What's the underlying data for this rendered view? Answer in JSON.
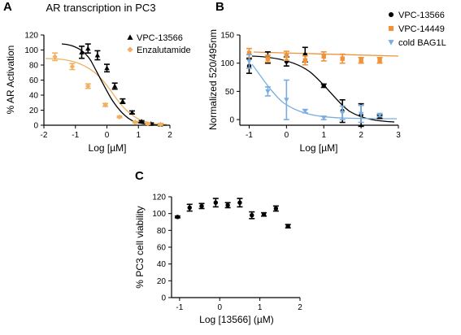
{
  "figure": {
    "panel_labels": [
      "A",
      "B",
      "C"
    ]
  },
  "chart_data": [
    {
      "panel": "A",
      "type": "scatter",
      "title": "AR transcription in PC3",
      "xlabel": "Log [µM]",
      "ylabel": "% AR Activation",
      "xlim": [
        -2,
        2
      ],
      "ylim": [
        0,
        120
      ],
      "x_ticks": [
        "-2",
        "-1",
        "0",
        "1",
        "2"
      ],
      "y_ticks": [
        "0",
        "20",
        "40",
        "60",
        "80",
        "100",
        "120"
      ],
      "legend": "top-right",
      "series": [
        {
          "name": "VPC-13566",
          "color": "#000000",
          "marker": "triangle",
          "x": [
            -0.8,
            -0.6,
            -0.3,
            0.0,
            0.25,
            0.5,
            0.8,
            1.1,
            1.4,
            1.7
          ],
          "y": [
            97,
            102,
            93,
            76,
            52,
            32,
            17,
            5,
            2,
            1
          ],
          "err": [
            8,
            6,
            6,
            5,
            4,
            3,
            2,
            1,
            1,
            1
          ]
        },
        {
          "name": "Enzalutamide",
          "color": "#f0b060",
          "marker": "diamond",
          "x": [
            -1.65,
            -1.1,
            -0.6,
            -0.05,
            0.4,
            0.9,
            1.3,
            1.7
          ],
          "y": [
            91,
            78,
            52,
            27,
            11,
            4,
            2,
            1
          ],
          "err": [
            5,
            4,
            3,
            2,
            1,
            1,
            1,
            1
          ]
        }
      ]
    },
    {
      "panel": "B",
      "type": "scatter",
      "title": "",
      "xlabel": "Log [µM]",
      "ylabel": "Normalized 520/495nm",
      "xlim": [
        -1.25,
        3
      ],
      "ylim": [
        -10,
        150
      ],
      "x_ticks": [
        "-1",
        "0",
        "1",
        "2",
        "3"
      ],
      "y_ticks": [
        "0",
        "50",
        "100",
        "150"
      ],
      "legend": "top-right",
      "series": [
        {
          "name": "VPC-13566",
          "color": "#000000",
          "marker": "circle",
          "x": [
            -1.0,
            -0.5,
            0.0,
            0.5,
            1.0,
            1.5,
            2.0,
            2.5
          ],
          "y": [
            95,
            110,
            103,
            115,
            60,
            15,
            8,
            5
          ],
          "err": [
            13,
            10,
            8,
            13,
            3,
            20,
            20,
            3
          ]
        },
        {
          "name": "VPC-14449",
          "color": "#f0923a",
          "marker": "square",
          "x": [
            -1.0,
            -0.5,
            0.0,
            0.5,
            1.0,
            1.5,
            2.0,
            2.5
          ],
          "y": [
            118,
            108,
            113,
            105,
            112,
            108,
            105,
            105
          ],
          "err": [
            8,
            6,
            8,
            8,
            8,
            8,
            5,
            5
          ]
        },
        {
          "name": "cold BAG1L",
          "color": "#7aaee0",
          "marker": "triangle-down",
          "x": [
            -1.0,
            -0.5,
            0.0,
            0.5,
            1.0,
            1.5,
            2.0,
            2.5
          ],
          "y": [
            103,
            50,
            35,
            15,
            3,
            12,
            10,
            8
          ],
          "err": [
            12,
            8,
            35,
            3,
            3,
            12,
            15,
            3
          ]
        }
      ]
    },
    {
      "panel": "C",
      "type": "scatter",
      "title": "",
      "xlabel": "Log [13566] (µM)",
      "ylabel": "% PC3 cell viability",
      "xlim": [
        -1.2,
        2
      ],
      "ylim": [
        0,
        120
      ],
      "x_ticks": [
        "-1",
        "0",
        "1",
        "2"
      ],
      "y_ticks": [
        "0",
        "20",
        "40",
        "60",
        "80",
        "100",
        "120"
      ],
      "legend": "none",
      "series": [
        {
          "name": "",
          "color": "#000000",
          "marker": "circle",
          "x": [
            -1.05,
            -0.75,
            -0.45,
            -0.1,
            0.2,
            0.5,
            0.8,
            1.1,
            1.4,
            1.7
          ],
          "y": [
            96,
            107,
            109,
            113,
            110,
            113,
            98,
            99,
            106,
            85
          ],
          "err": [
            1,
            4,
            3,
            5,
            3,
            5,
            4,
            2,
            3,
            2
          ]
        }
      ]
    }
  ]
}
